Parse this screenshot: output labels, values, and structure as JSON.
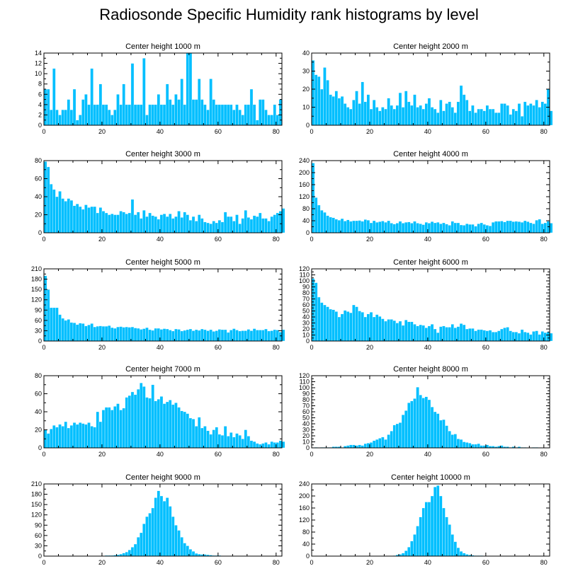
{
  "page": {
    "title": "Radiosonde Specific Humidity rank histograms by level"
  },
  "style": {
    "bar_color": "#00BFFF",
    "bar_edge": "#ffffff",
    "axis_color": "#000000"
  },
  "chart_data": [
    {
      "type": "bar",
      "title": "Center height 1000 m",
      "xlim": [
        0,
        82
      ],
      "ylim": [
        0,
        14
      ],
      "xticks": [
        0,
        20,
        40,
        60,
        80
      ],
      "yticks": [
        0,
        2,
        4,
        6,
        8,
        10,
        12,
        14
      ],
      "values": [
        7,
        7,
        3,
        11,
        3,
        2,
        3,
        3,
        5,
        3,
        7,
        1,
        2,
        5,
        6,
        4,
        11,
        4,
        4,
        8,
        4,
        4,
        3,
        2,
        3,
        6,
        4,
        8,
        4,
        4,
        12,
        4,
        4,
        4,
        13,
        2,
        4,
        4,
        4,
        6,
        4,
        4,
        8,
        5,
        4,
        6,
        5,
        9,
        4,
        14,
        14,
        5,
        5,
        9,
        5,
        4,
        3,
        9,
        5,
        4,
        4,
        4,
        4,
        4,
        4,
        3,
        4,
        3,
        2,
        4,
        4,
        7,
        4,
        1,
        5,
        5,
        3,
        2,
        2,
        4,
        2,
        5
      ]
    },
    {
      "type": "bar",
      "title": "Center height 2000 m",
      "xlim": [
        0,
        82
      ],
      "ylim": [
        0,
        40
      ],
      "xticks": [
        0,
        20,
        40,
        60,
        80
      ],
      "yticks": [
        0,
        10,
        20,
        30,
        40
      ],
      "values": [
        36,
        28,
        27,
        20,
        32,
        25,
        17,
        16,
        19,
        15,
        16,
        12,
        10,
        9,
        14,
        19,
        12,
        24,
        13,
        17,
        9,
        14,
        10,
        8,
        10,
        9,
        15,
        11,
        9,
        11,
        18,
        10,
        19,
        13,
        11,
        17,
        10,
        11,
        9,
        12,
        15,
        10,
        9,
        7,
        14,
        8,
        12,
        13,
        10,
        7,
        13,
        22,
        17,
        14,
        8,
        11,
        7,
        9,
        9,
        8,
        11,
        9,
        9,
        7,
        7,
        12,
        12,
        11,
        6,
        9,
        8,
        12,
        5,
        13,
        11,
        12,
        11,
        14,
        10,
        13,
        12,
        20,
        8
      ]
    },
    {
      "type": "bar",
      "title": "Center height 3000 m",
      "xlim": [
        0,
        82
      ],
      "ylim": [
        0,
        80
      ],
      "xticks": [
        0,
        20,
        40,
        60,
        80
      ],
      "yticks": [
        0,
        20,
        40,
        60,
        80
      ],
      "values": [
        79,
        73,
        54,
        48,
        40,
        46,
        38,
        35,
        38,
        36,
        30,
        32,
        29,
        26,
        31,
        28,
        29,
        29,
        22,
        28,
        24,
        22,
        20,
        21,
        20,
        20,
        24,
        23,
        21,
        22,
        37,
        20,
        23,
        16,
        25,
        18,
        22,
        19,
        18,
        15,
        20,
        21,
        18,
        21,
        16,
        18,
        24,
        17,
        23,
        20,
        14,
        18,
        13,
        20,
        16,
        12,
        11,
        10,
        13,
        11,
        14,
        12,
        23,
        18,
        18,
        13,
        20,
        10,
        16,
        25,
        17,
        15,
        19,
        18,
        22,
        16,
        16,
        13,
        18,
        20,
        22,
        24,
        27
      ]
    },
    {
      "type": "bar",
      "title": "Center height 4000 m",
      "xlim": [
        0,
        82
      ],
      "ylim": [
        0,
        240
      ],
      "xticks": [
        0,
        20,
        40,
        60,
        80
      ],
      "yticks": [
        0,
        40,
        80,
        120,
        160,
        200,
        240
      ],
      "values": [
        232,
        117,
        92,
        75,
        68,
        57,
        52,
        50,
        45,
        42,
        47,
        39,
        43,
        38,
        40,
        40,
        41,
        38,
        44,
        42,
        33,
        40,
        35,
        37,
        39,
        35,
        40,
        32,
        29,
        32,
        38,
        32,
        35,
        36,
        32,
        38,
        32,
        30,
        27,
        35,
        32,
        37,
        33,
        35,
        30,
        33,
        29,
        25,
        38,
        33,
        33,
        26,
        25,
        30,
        28,
        28,
        22,
        30,
        33,
        28,
        25,
        23,
        35,
        38,
        38,
        39,
        36,
        40,
        40,
        37,
        38,
        37,
        35,
        40,
        37,
        33,
        30,
        42,
        45,
        30,
        33,
        38,
        32
      ]
    },
    {
      "type": "bar",
      "title": "Center height 5000 m",
      "xlim": [
        0,
        82
      ],
      "ylim": [
        0,
        210
      ],
      "xticks": [
        0,
        20,
        40,
        60,
        80
      ],
      "yticks": [
        0,
        30,
        60,
        90,
        120,
        150,
        180,
        210
      ],
      "values": [
        190,
        150,
        97,
        97,
        97,
        77,
        66,
        60,
        63,
        54,
        53,
        48,
        52,
        51,
        44,
        47,
        51,
        41,
        43,
        44,
        43,
        43,
        45,
        39,
        37,
        41,
        42,
        40,
        41,
        40,
        41,
        38,
        37,
        34,
        36,
        39,
        33,
        31,
        37,
        37,
        34,
        36,
        35,
        32,
        29,
        35,
        34,
        29,
        31,
        33,
        35,
        30,
        33,
        31,
        35,
        33,
        30,
        33,
        28,
        30,
        34,
        33,
        33,
        25,
        32,
        36,
        32,
        29,
        30,
        30,
        34,
        30,
        36,
        32,
        32,
        32,
        35,
        29,
        30,
        33,
        32,
        26,
        33
      ]
    },
    {
      "type": "bar",
      "title": "Center height 6000 m",
      "xlim": [
        0,
        82
      ],
      "ylim": [
        0,
        120
      ],
      "xticks": [
        0,
        20,
        40,
        60,
        80
      ],
      "yticks": [
        0,
        10,
        20,
        30,
        40,
        50,
        60,
        70,
        80,
        90,
        100,
        110,
        120
      ],
      "values": [
        104,
        97,
        73,
        64,
        60,
        57,
        53,
        52,
        49,
        40,
        45,
        51,
        49,
        47,
        60,
        57,
        50,
        48,
        40,
        45,
        48,
        40,
        44,
        41,
        37,
        33,
        36,
        36,
        34,
        30,
        33,
        26,
        35,
        32,
        32,
        28,
        25,
        27,
        26,
        22,
        25,
        28,
        20,
        14,
        24,
        25,
        23,
        23,
        28,
        22,
        24,
        29,
        27,
        20,
        21,
        21,
        17,
        19,
        19,
        18,
        17,
        18,
        15,
        15,
        17,
        20,
        22,
        23,
        17,
        15,
        15,
        13,
        19,
        15,
        14,
        11,
        16,
        17,
        11,
        16,
        14,
        15,
        13
      ]
    },
    {
      "type": "bar",
      "title": "Center height 7000 m",
      "xlim": [
        0,
        82
      ],
      "ylim": [
        0,
        80
      ],
      "xticks": [
        0,
        20,
        40,
        60,
        80
      ],
      "yticks": [
        0,
        20,
        40,
        60,
        80
      ],
      "values": [
        20,
        16,
        21,
        25,
        23,
        26,
        24,
        29,
        22,
        25,
        28,
        26,
        28,
        27,
        26,
        28,
        24,
        23,
        40,
        29,
        42,
        45,
        45,
        42,
        46,
        49,
        42,
        44,
        56,
        58,
        62,
        59,
        65,
        72,
        68,
        56,
        55,
        70,
        52,
        54,
        57,
        49,
        51,
        53,
        48,
        50,
        45,
        41,
        40,
        38,
        33,
        32,
        24,
        34,
        22,
        24,
        19,
        15,
        20,
        23,
        15,
        14,
        24,
        13,
        17,
        12,
        16,
        14,
        10,
        20,
        13,
        8,
        7,
        5,
        4,
        5,
        6,
        4,
        7,
        6,
        6,
        8,
        7
      ]
    },
    {
      "type": "bar",
      "title": "Center height 8000 m",
      "xlim": [
        0,
        82
      ],
      "ylim": [
        0,
        120
      ],
      "xticks": [
        0,
        20,
        40,
        60,
        80
      ],
      "yticks": [
        0,
        10,
        20,
        30,
        40,
        50,
        60,
        70,
        80,
        90,
        100,
        110,
        120
      ],
      "values": [
        0,
        1,
        0,
        1,
        1,
        1,
        1,
        2,
        2,
        2,
        1,
        3,
        4,
        5,
        5,
        4,
        5,
        4,
        7,
        8,
        9,
        12,
        14,
        16,
        18,
        14,
        22,
        28,
        38,
        40,
        42,
        55,
        62,
        75,
        78,
        82,
        101,
        88,
        83,
        85,
        80,
        68,
        60,
        57,
        46,
        47,
        37,
        28,
        22,
        23,
        15,
        14,
        10,
        9,
        8,
        6,
        6,
        7,
        4,
        4,
        5,
        3,
        3,
        2,
        3,
        4,
        2,
        2,
        1,
        2,
        1,
        2,
        1,
        1,
        0,
        0,
        1,
        1,
        0,
        0,
        0,
        0,
        0
      ]
    },
    {
      "type": "bar",
      "title": "Center height 9000 m",
      "xlim": [
        0,
        82
      ],
      "ylim": [
        0,
        210
      ],
      "xticks": [
        0,
        20,
        40,
        60,
        80
      ],
      "yticks": [
        0,
        30,
        60,
        90,
        120,
        150,
        180,
        210
      ],
      "values": [
        0,
        0,
        0,
        0,
        0,
        0,
        0,
        0,
        0,
        0,
        0,
        0,
        0,
        0,
        0,
        0,
        0,
        0,
        1,
        1,
        1,
        2,
        2,
        2,
        3,
        4,
        6,
        9,
        12,
        18,
        26,
        35,
        55,
        68,
        94,
        115,
        125,
        140,
        170,
        190,
        175,
        160,
        170,
        145,
        115,
        90,
        75,
        55,
        38,
        30,
        20,
        14,
        8,
        6,
        5,
        5,
        4,
        3,
        2,
        2,
        2,
        1,
        1,
        1,
        1,
        1,
        1,
        1,
        0,
        0,
        0,
        0,
        0,
        0,
        0,
        0,
        0,
        0,
        0,
        0,
        0,
        0
      ]
    },
    {
      "type": "bar",
      "title": "Center height 10000 m",
      "xlim": [
        0,
        82
      ],
      "ylim": [
        0,
        240
      ],
      "xticks": [
        0,
        20,
        40,
        60,
        80
      ],
      "yticks": [
        0,
        40,
        80,
        120,
        160,
        200,
        240
      ],
      "values": [
        0,
        0,
        0,
        0,
        0,
        0,
        0,
        0,
        0,
        0,
        0,
        0,
        0,
        0,
        0,
        0,
        0,
        0,
        0,
        0,
        0,
        0,
        0,
        0,
        0,
        0,
        0,
        0,
        2,
        4,
        6,
        10,
        18,
        30,
        50,
        72,
        100,
        130,
        160,
        180,
        180,
        200,
        230,
        235,
        200,
        160,
        130,
        105,
        72,
        48,
        28,
        16,
        10,
        6,
        4,
        3,
        2,
        2,
        2,
        1,
        1,
        1,
        1,
        1,
        1,
        0,
        0,
        0,
        0,
        0,
        0,
        0,
        0,
        0,
        0,
        0,
        0,
        0,
        0,
        0,
        0,
        0,
        0
      ]
    }
  ]
}
